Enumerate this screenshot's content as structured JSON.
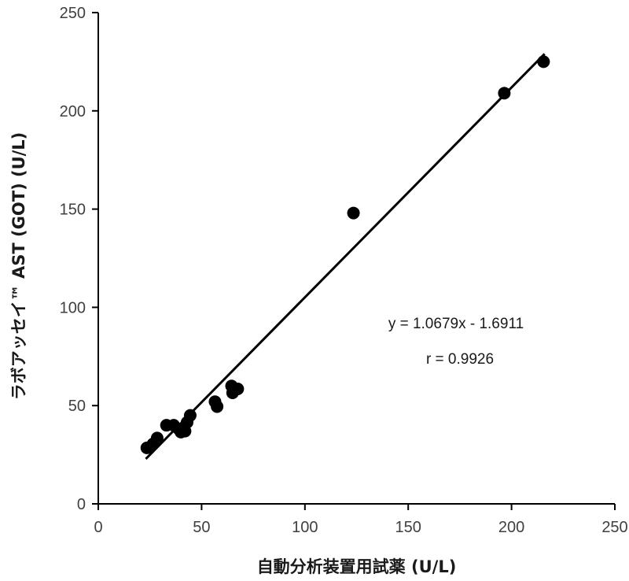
{
  "chart_data": {
    "type": "scatter",
    "xlabel": "自動分析装置用試薬 (U/L)",
    "ylabel": "ラボアッセイ™ AST (GOT) (U/L)",
    "xlim": [
      0,
      250
    ],
    "ylim": [
      0,
      250
    ],
    "xticks": [
      0,
      50,
      100,
      150,
      200,
      250
    ],
    "yticks": [
      0,
      50,
      100,
      150,
      200,
      250
    ],
    "x_tick_labels": [
      "0",
      "50",
      "100",
      "150",
      "200",
      "250"
    ],
    "y_tick_labels": [
      "0",
      "50",
      "100",
      "150",
      "200",
      "250"
    ],
    "grid": false,
    "points": [
      {
        "x": 23.5,
        "y": 28.5
      },
      {
        "x": 26.5,
        "y": 30.5
      },
      {
        "x": 28.5,
        "y": 33.5
      },
      {
        "x": 33,
        "y": 40
      },
      {
        "x": 36.5,
        "y": 40
      },
      {
        "x": 39,
        "y": 38
      },
      {
        "x": 40,
        "y": 36.5
      },
      {
        "x": 42,
        "y": 37
      },
      {
        "x": 43,
        "y": 41.5
      },
      {
        "x": 44.5,
        "y": 45
      },
      {
        "x": 56.5,
        "y": 52
      },
      {
        "x": 57.5,
        "y": 49.5
      },
      {
        "x": 64.5,
        "y": 60
      },
      {
        "x": 65,
        "y": 56.5
      },
      {
        "x": 67.5,
        "y": 58.5
      },
      {
        "x": 123.5,
        "y": 148
      },
      {
        "x": 196.5,
        "y": 209
      },
      {
        "x": 215.5,
        "y": 225
      }
    ],
    "trendline": {
      "slope": 1.0679,
      "intercept": -1.6911,
      "x_from": 23,
      "x_to": 216
    },
    "annotations": [
      "y = 1.0679x - 1.6911",
      "r = 0.9926"
    ],
    "colors": {
      "points": "#000000",
      "line": "#000000",
      "axis": "#000000"
    }
  }
}
